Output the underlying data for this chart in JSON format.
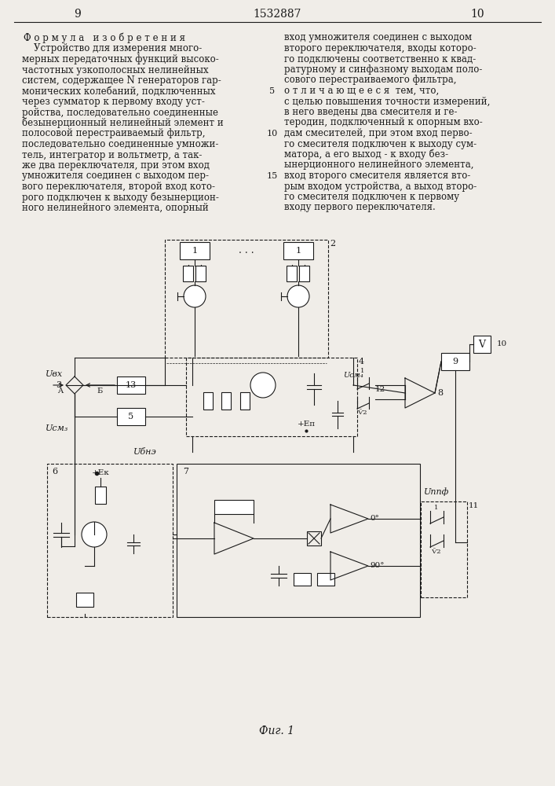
{
  "page_left": "9",
  "page_center": "1532887",
  "page_right": "10",
  "bg_color": "#f0ede8",
  "text_color": "#1a1a1a",
  "left_column_title": "Ф о р м у л а   и з о б р е т е н и я",
  "left_col_lines": [
    "    Устройство для измерения много-",
    "мерных передаточных функций высоко-",
    "частотных узкополосных нелинейных",
    "систем, содержащее N генераторов гар-",
    "монических колебаний, подключенных",
    "через сумматор к первому входу уст-",
    "ройства, последовательно соединенные",
    "безынерционный нелинейный элемент и",
    "полосовой перестраиваемый фильтр,",
    "последовательно соединенные умножи-",
    "тель, интегратор и вольтметр, а так-",
    "же два переключателя, при этом вход",
    "умножителя соединен с выходом пер-",
    "вого переключателя, второй вход кото-",
    "рого подключен к выходу безынерцион-",
    "ного нелинейного элемента, опорный"
  ],
  "right_col_lines": [
    "вход умножителя соединен с выходом",
    "второго переключателя, входы которо-",
    "го подключены соответственно к квад-",
    "ратурному и синфазному выходам поло-",
    "сового перестраиваемого фильтра,",
    "о т л и ч а ю щ е е с я  тем, что,",
    "с целью повышения точности измерений,",
    "в него введены два смесителя и ге-",
    "теродин, подключенный к опорным вхо-",
    "дам смесителей, при этом вход перво-",
    "го смесителя подключен к выходу сум-",
    "матора, а его выход - к входу без-",
    "ынерционного нелинейного элемента,",
    "вход второго смесителя является вто-",
    "рым входом устройства, а выход второ-",
    "го смесителя подключен к первому",
    "входу первого переключателя."
  ],
  "fig_caption": "Фиг. 1"
}
